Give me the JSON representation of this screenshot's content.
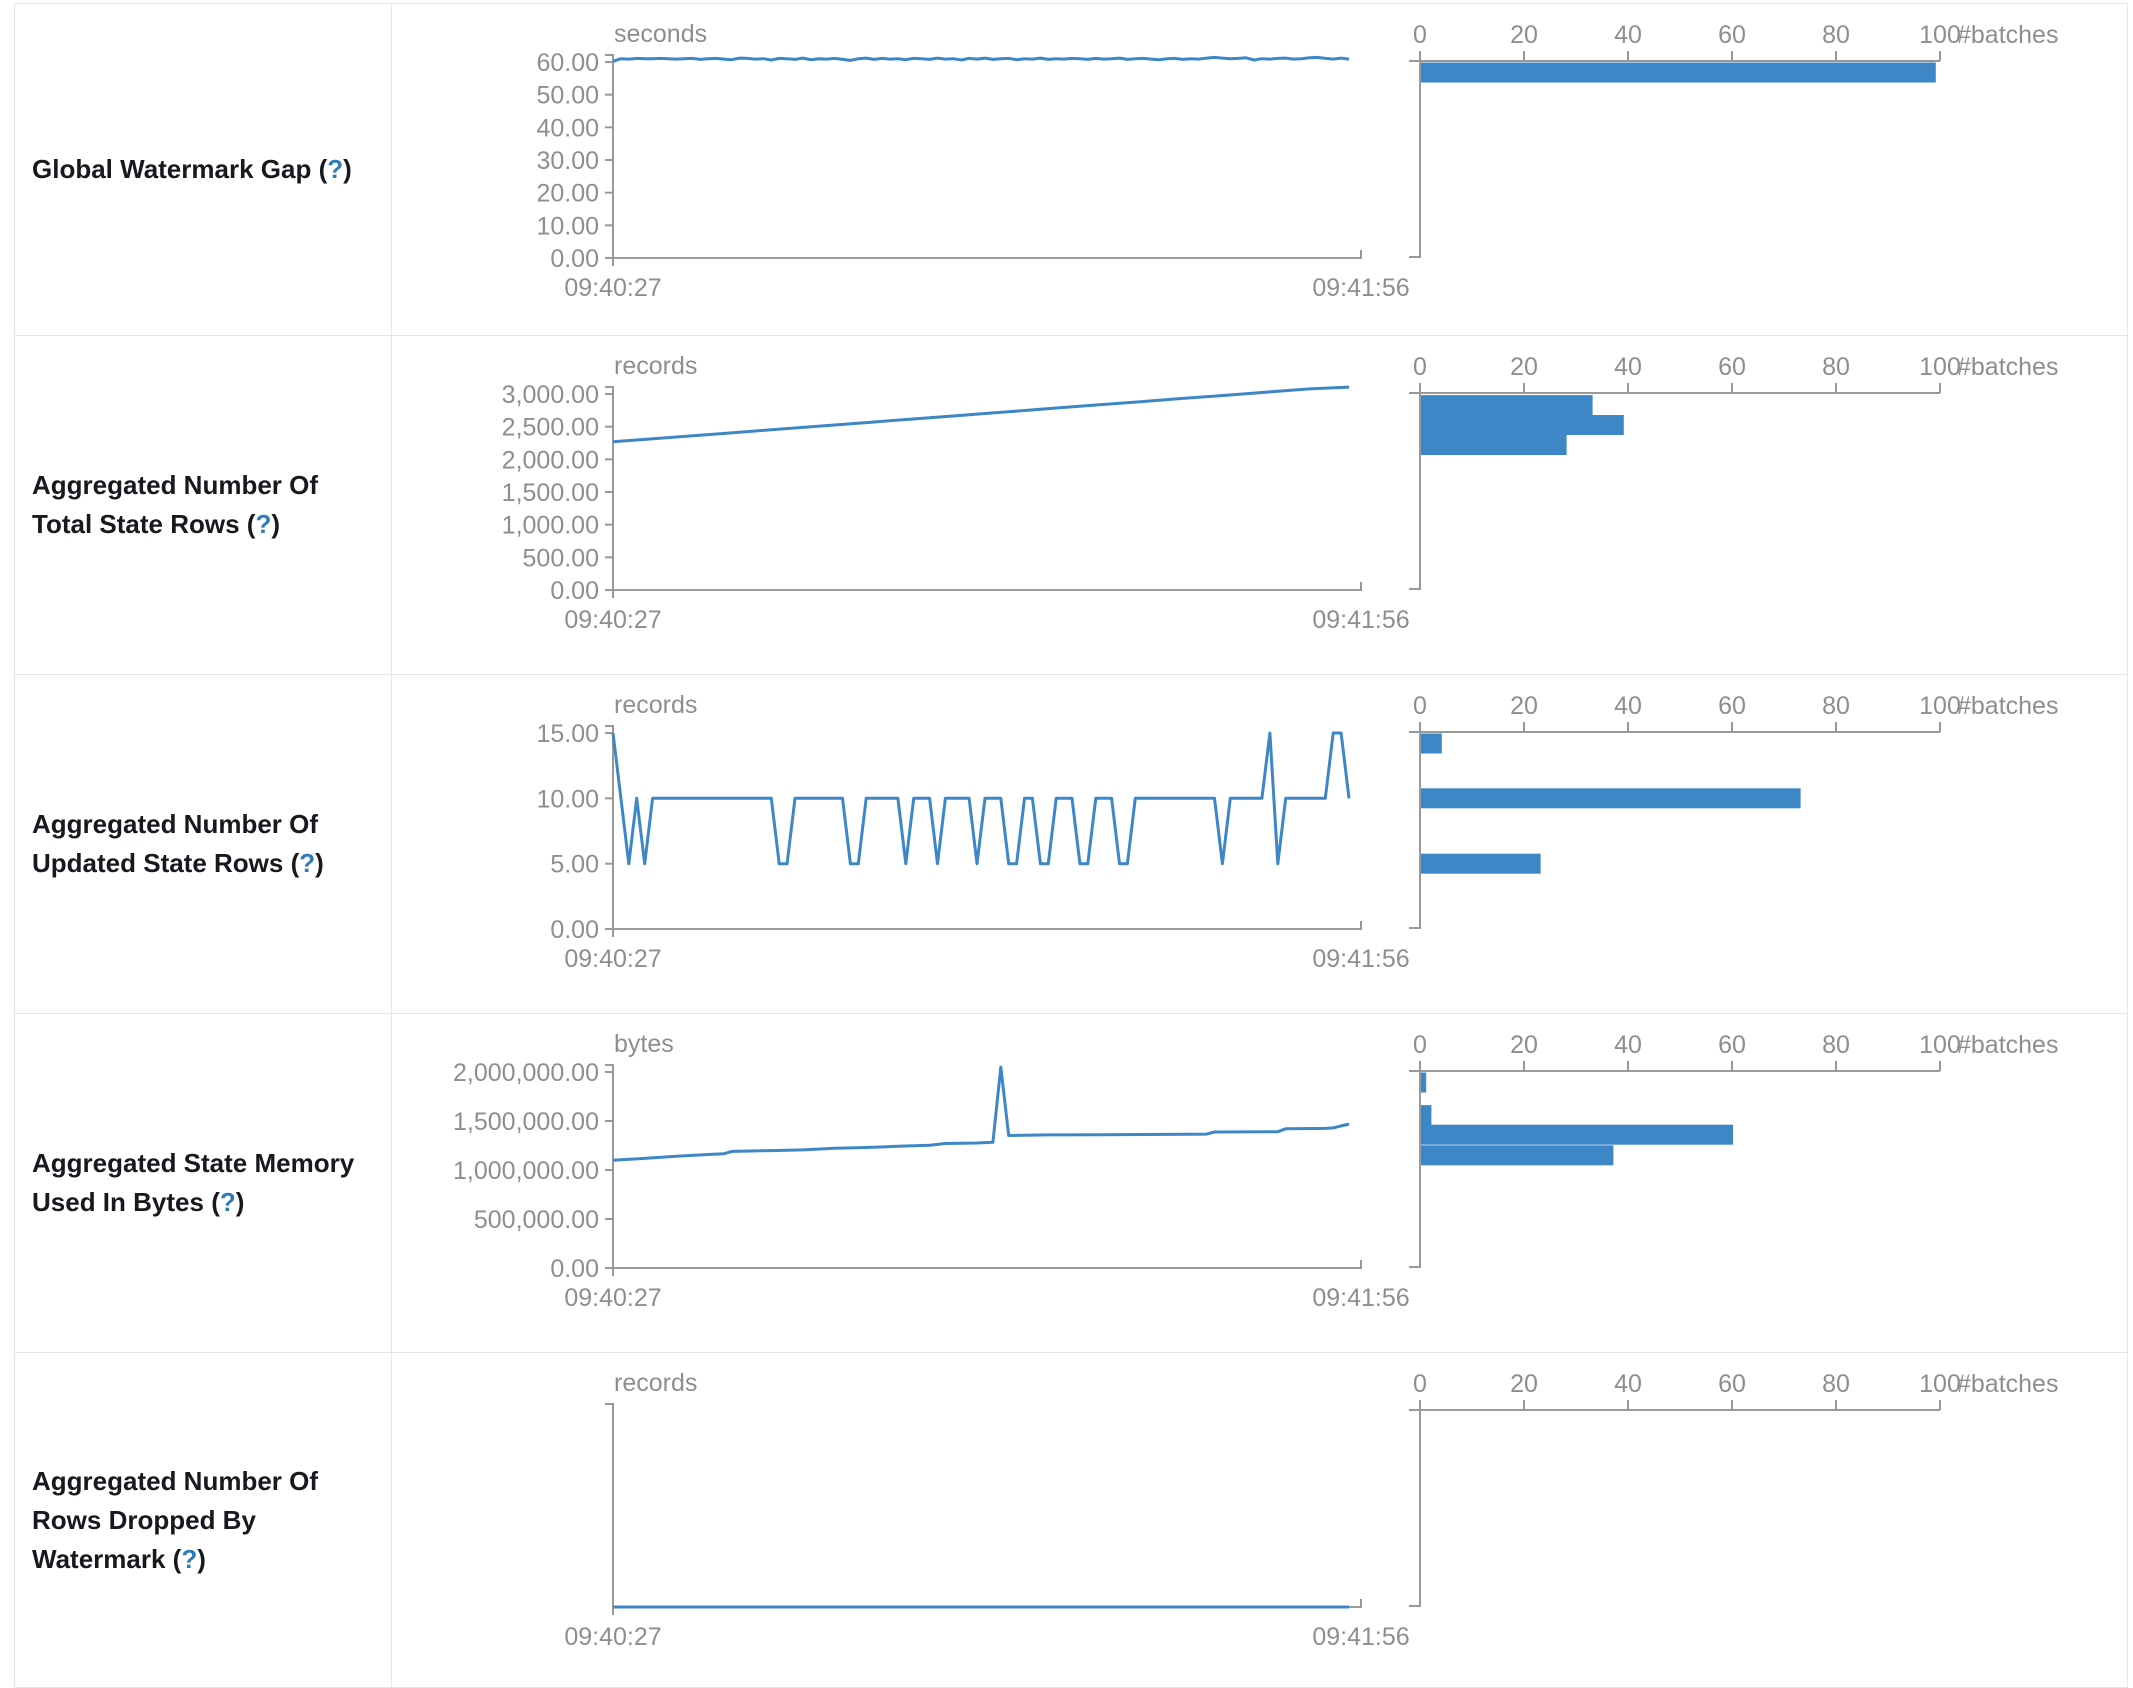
{
  "page": {
    "background": "#ffffff"
  },
  "colors": {
    "line": "#3d87c6",
    "bar": "#3d87c6",
    "axis": "#999999",
    "axis_text": "#8e8e8e",
    "title_text": "#16191d",
    "help_link": "#2d7bb9",
    "border": "#e2e7ea"
  },
  "help": {
    "open": "(",
    "q": "?",
    "close": ")"
  },
  "x_axis": {
    "start": "09:40:27",
    "end": "09:41:56"
  },
  "histogram_axis": {
    "tick_labels": [
      "0",
      "20",
      "40",
      "60",
      "80",
      "100"
    ],
    "tick_values": [
      0,
      20,
      40,
      60,
      80,
      100
    ],
    "unit": "#batches",
    "max": 100
  },
  "chart_data": [
    {
      "type": "line",
      "title": "Global Watermark Gap",
      "unit": "seconds",
      "y_max": 60,
      "y_tick_values": [
        60,
        50,
        40,
        30,
        20,
        10,
        0
      ],
      "y_tick_labels": [
        "60.00",
        "50.00",
        "40.00",
        "30.00",
        "20.00",
        "10.00",
        "0.00"
      ],
      "x_start": "09:40:27",
      "x_end": "09:41:56",
      "values": [
        60.2,
        61.0,
        60.9,
        61.1,
        61.0,
        61.0,
        61.1,
        61.0,
        60.9,
        61.0,
        61.1,
        60.8,
        61.0,
        61.1,
        60.9,
        60.7,
        61.2,
        61.1,
        60.9,
        61.0,
        60.6,
        61.1,
        61.0,
        60.8,
        61.2,
        60.7,
        61.0,
        60.9,
        61.1,
        60.8,
        60.5,
        61.0,
        61.2,
        60.8,
        61.1,
        60.9,
        61.0,
        60.7,
        61.1,
        61.0,
        60.8,
        61.2,
        60.9,
        61.0,
        60.6,
        61.1,
        60.9,
        61.2,
        60.8,
        61.0,
        61.1,
        60.7,
        61.0,
        60.9,
        61.2,
        60.8,
        61.0,
        60.9,
        61.1,
        61.0,
        60.8,
        61.1,
        60.9,
        61.0,
        61.2,
        60.8,
        61.0,
        61.1,
        60.9,
        60.7,
        61.0,
        61.1,
        60.8,
        61.0,
        60.9,
        61.2,
        61.4,
        61.2,
        61.0,
        61.1,
        61.3,
        60.6,
        61.0,
        60.9,
        61.1,
        61.2,
        60.9,
        61.0,
        61.3,
        61.4,
        61.1,
        60.9,
        61.2,
        60.9
      ],
      "histogram": [
        {
          "value_bin": 60.6,
          "count": 99
        }
      ]
    },
    {
      "type": "line",
      "title": "Aggregated Number Of Total State Rows",
      "unit": "records",
      "y_max": 3000,
      "y_tick_values": [
        3000,
        2500,
        2000,
        1500,
        1000,
        500,
        0
      ],
      "y_tick_labels": [
        "3,000.00",
        "2,500.00",
        "2,000.00",
        "1,500.00",
        "1,000.00",
        "500.00",
        "0.00"
      ],
      "x_start": "09:40:27",
      "x_end": "09:41:56",
      "points": [
        [
          0,
          2270
        ],
        [
          4,
          2305
        ],
        [
          8,
          2342
        ],
        [
          12,
          2378
        ],
        [
          16,
          2415
        ],
        [
          20,
          2452
        ],
        [
          24,
          2489
        ],
        [
          28,
          2525
        ],
        [
          32,
          2562
        ],
        [
          36,
          2600
        ],
        [
          40,
          2637
        ],
        [
          44,
          2673
        ],
        [
          48,
          2710
        ],
        [
          52,
          2748
        ],
        [
          56,
          2785
        ],
        [
          60,
          2822
        ],
        [
          64,
          2858
        ],
        [
          68,
          2895
        ],
        [
          72,
          2932
        ],
        [
          76,
          2968
        ],
        [
          80,
          3005
        ],
        [
          84,
          3042
        ],
        [
          88,
          3078
        ],
        [
          93,
          3105
        ]
      ],
      "histogram": [
        {
          "value_bin": 2830,
          "count": 33
        },
        {
          "value_bin": 2525,
          "count": 39
        },
        {
          "value_bin": 2220,
          "count": 28
        }
      ]
    },
    {
      "type": "line",
      "title": "Aggregated Number Of Updated State Rows",
      "unit": "records",
      "y_max": 15,
      "y_tick_values": [
        15,
        10,
        5,
        0
      ],
      "y_tick_labels": [
        "15.00",
        "10.00",
        "5.00",
        "0.00"
      ],
      "x_start": "09:40:27",
      "x_end": "09:41:56",
      "values": [
        15,
        10,
        5,
        10,
        5,
        10,
        10,
        10,
        10,
        10,
        10,
        10,
        10,
        10,
        10,
        10,
        10,
        10,
        10,
        10,
        10,
        5,
        5,
        10,
        10,
        10,
        10,
        10,
        10,
        10,
        5,
        5,
        10,
        10,
        10,
        10,
        10,
        5,
        10,
        10,
        10,
        5,
        10,
        10,
        10,
        10,
        5,
        10,
        10,
        10,
        5,
        5,
        10,
        10,
        5,
        5,
        10,
        10,
        10,
        5,
        5,
        10,
        10,
        10,
        5,
        5,
        10,
        10,
        10,
        10,
        10,
        10,
        10,
        10,
        10,
        10,
        10,
        5,
        10,
        10,
        10,
        10,
        10,
        15,
        5,
        10,
        10,
        10,
        10,
        10,
        10,
        15,
        15,
        10
      ],
      "histogram": [
        {
          "value_bin": 15,
          "count": 4
        },
        {
          "value_bin": 10,
          "count": 73
        },
        {
          "value_bin": 5,
          "count": 23
        }
      ]
    },
    {
      "type": "line",
      "title": "Aggregated State Memory Used In Bytes",
      "unit": "bytes",
      "y_max": 2000000,
      "y_tick_values": [
        2000000,
        1500000,
        1000000,
        500000,
        0
      ],
      "y_tick_labels": [
        "2,000,000.00",
        "1,500,000.00",
        "1,000,000.00",
        "500,000.00",
        "0.00"
      ],
      "x_start": "09:40:27",
      "x_end": "09:41:56",
      "points": [
        [
          0,
          1100000
        ],
        [
          4,
          1118000
        ],
        [
          8,
          1140000
        ],
        [
          12,
          1158000
        ],
        [
          14,
          1165000
        ],
        [
          15,
          1190000
        ],
        [
          20,
          1198000
        ],
        [
          24,
          1205000
        ],
        [
          28,
          1222000
        ],
        [
          32,
          1230000
        ],
        [
          36,
          1242000
        ],
        [
          40,
          1252000
        ],
        [
          42,
          1270000
        ],
        [
          46,
          1276000
        ],
        [
          48,
          1283000
        ],
        [
          49,
          2050000
        ],
        [
          50,
          1352000
        ],
        [
          55,
          1358000
        ],
        [
          62,
          1360000
        ],
        [
          70,
          1363000
        ],
        [
          75,
          1366000
        ],
        [
          76,
          1388000
        ],
        [
          84,
          1391000
        ],
        [
          85,
          1420000
        ],
        [
          90,
          1424000
        ],
        [
          91,
          1430000
        ],
        [
          92,
          1450000
        ],
        [
          93,
          1468000
        ]
      ],
      "histogram": [
        {
          "value_bin": 2050000,
          "count": 1
        },
        {
          "value_bin": 1560000,
          "count": 2
        },
        {
          "value_bin": 1360000,
          "count": 60
        },
        {
          "value_bin": 1150000,
          "count": 37
        }
      ]
    },
    {
      "type": "line",
      "title": "Aggregated Number Of Rows Dropped By Watermark",
      "unit": "records",
      "y_max": 1,
      "y_tick_values": [],
      "y_tick_labels": [],
      "x_start": "09:40:27",
      "x_end": "09:41:56",
      "points": [
        [
          0,
          0
        ],
        [
          93,
          0
        ]
      ],
      "histogram": []
    }
  ]
}
